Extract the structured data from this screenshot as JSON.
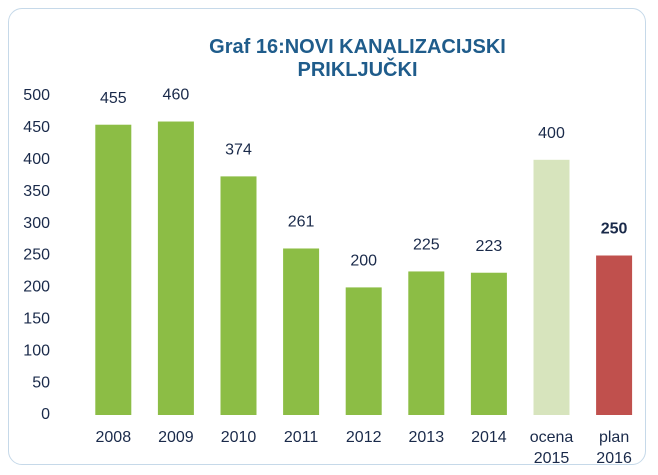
{
  "chart_data": {
    "type": "bar",
    "title": "Graf 16:NOVI KANALIZACIJSKI PRIKLJUČKI",
    "categories": [
      "2008",
      "2009",
      "2010",
      "2011",
      "2012",
      "2013",
      "2014",
      "ocena 2015",
      "plan 2016"
    ],
    "values": [
      455,
      460,
      374,
      261,
      200,
      225,
      223,
      400,
      250
    ],
    "colors": [
      "#8cbd45",
      "#8cbd45",
      "#8cbd45",
      "#8cbd45",
      "#8cbd45",
      "#8cbd45",
      "#8cbd45",
      "#d7e4bd",
      "#c0504d"
    ],
    "label_weights": [
      "normal",
      "normal",
      "normal",
      "normal",
      "normal",
      "normal",
      "normal",
      "normal",
      "bold"
    ],
    "ylim": [
      0,
      500
    ],
    "yticks": [
      0,
      50,
      100,
      150,
      200,
      250,
      300,
      350,
      400,
      450,
      500
    ],
    "grid": false
  }
}
